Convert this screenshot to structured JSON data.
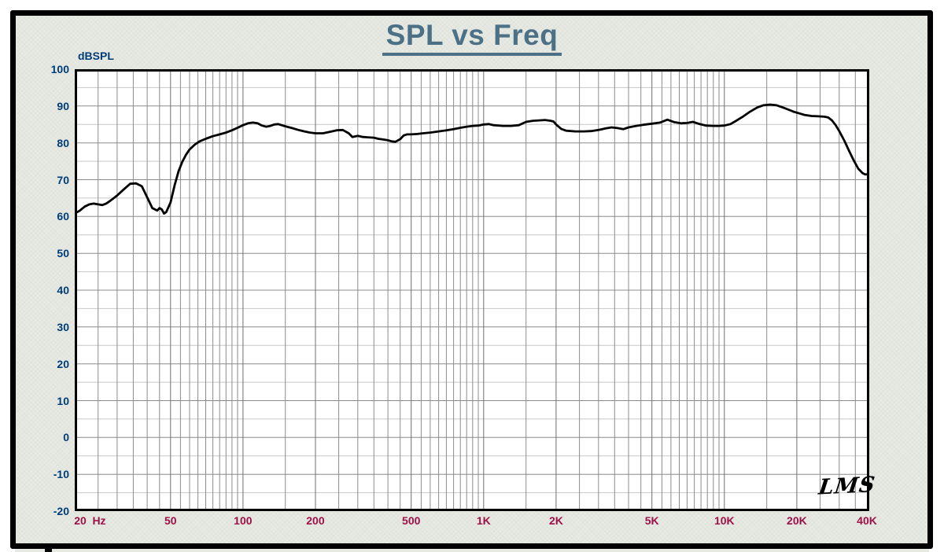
{
  "chart": {
    "title": "SPL vs Freq",
    "y_unit_label": "dBSPL",
    "x_unit_label": "Hz",
    "watermark": "LMS",
    "colors": {
      "title": "#4c7186",
      "y_labels": "#003d78",
      "x_labels": "#9e1148",
      "curve": "#000000",
      "frame": "#000000",
      "panel_bg": "#e7e9e3",
      "plot_bg": "#ffffff",
      "grid_major": "#8c8c8c",
      "grid_major_labeled": "#6e6e6e",
      "grid_minor": "#c8c8c8"
    }
  },
  "chart_data": {
    "type": "line",
    "title": "SPL vs Freq",
    "xlabel": "Hz",
    "ylabel": "dBSPL",
    "xscale": "log",
    "xlim": [
      20,
      40000
    ],
    "ylim": [
      -20,
      100
    ],
    "grid": "log minor gridlines at 0.5-steps per decade; horizontal lines every 5 dB (major every 10 dB)",
    "legend_position": "none",
    "x_ticks": [
      {
        "value": 20,
        "label": "20"
      },
      {
        "value": 50,
        "label": "50"
      },
      {
        "value": 100,
        "label": "100"
      },
      {
        "value": 200,
        "label": "200"
      },
      {
        "value": 500,
        "label": "500"
      },
      {
        "value": 1000,
        "label": "1K"
      },
      {
        "value": 2000,
        "label": "2K"
      },
      {
        "value": 5000,
        "label": "5K"
      },
      {
        "value": 10000,
        "label": "10K"
      },
      {
        "value": 20000,
        "label": "20K"
      },
      {
        "value": 40000,
        "label": "40K"
      }
    ],
    "y_ticks": [
      100,
      90,
      80,
      70,
      60,
      50,
      40,
      30,
      20,
      10,
      0,
      -10,
      -20
    ],
    "series": [
      {
        "name": "SPL",
        "points": [
          [
            20,
            60.8
          ],
          [
            21,
            61.6
          ],
          [
            22,
            62.7
          ],
          [
            23,
            63.3
          ],
          [
            24,
            63.5
          ],
          [
            25,
            63.3
          ],
          [
            26,
            63.1
          ],
          [
            27,
            63.5
          ],
          [
            28,
            64.2
          ],
          [
            30,
            65.7
          ],
          [
            32,
            67.4
          ],
          [
            34,
            68.9
          ],
          [
            36,
            69.0
          ],
          [
            38,
            68.2
          ],
          [
            40,
            65.2
          ],
          [
            42,
            62.3
          ],
          [
            44,
            61.6
          ],
          [
            45,
            62.3
          ],
          [
            46,
            61.9
          ],
          [
            47,
            60.8
          ],
          [
            48,
            61.2
          ],
          [
            50,
            63.8
          ],
          [
            52,
            68.5
          ],
          [
            54,
            72.3
          ],
          [
            56,
            74.9
          ],
          [
            58,
            76.8
          ],
          [
            60,
            78.2
          ],
          [
            63,
            79.5
          ],
          [
            66,
            80.4
          ],
          [
            70,
            81.1
          ],
          [
            75,
            81.8
          ],
          [
            80,
            82.3
          ],
          [
            85,
            82.8
          ],
          [
            90,
            83.4
          ],
          [
            95,
            84.1
          ],
          [
            100,
            84.8
          ],
          [
            105,
            85.3
          ],
          [
            110,
            85.5
          ],
          [
            115,
            85.3
          ],
          [
            120,
            84.7
          ],
          [
            125,
            84.4
          ],
          [
            130,
            84.6
          ],
          [
            135,
            85.0
          ],
          [
            140,
            85.1
          ],
          [
            150,
            84.5
          ],
          [
            160,
            84.0
          ],
          [
            170,
            83.5
          ],
          [
            180,
            83.1
          ],
          [
            190,
            82.8
          ],
          [
            200,
            82.6
          ],
          [
            215,
            82.6
          ],
          [
            230,
            83.0
          ],
          [
            245,
            83.4
          ],
          [
            260,
            83.5
          ],
          [
            275,
            82.6
          ],
          [
            285,
            81.6
          ],
          [
            300,
            81.9
          ],
          [
            315,
            81.6
          ],
          [
            330,
            81.5
          ],
          [
            350,
            81.4
          ],
          [
            365,
            81.1
          ],
          [
            385,
            80.9
          ],
          [
            400,
            80.7
          ],
          [
            415,
            80.4
          ],
          [
            430,
            80.3
          ],
          [
            450,
            81.0
          ],
          [
            465,
            82.0
          ],
          [
            480,
            82.3
          ],
          [
            500,
            82.3
          ],
          [
            530,
            82.4
          ],
          [
            560,
            82.6
          ],
          [
            600,
            82.8
          ],
          [
            650,
            83.1
          ],
          [
            700,
            83.4
          ],
          [
            750,
            83.7
          ],
          [
            800,
            84.1
          ],
          [
            850,
            84.4
          ],
          [
            900,
            84.6
          ],
          [
            950,
            84.7
          ],
          [
            1000,
            85.0
          ],
          [
            1050,
            85.1
          ],
          [
            1100,
            84.8
          ],
          [
            1200,
            84.6
          ],
          [
            1300,
            84.6
          ],
          [
            1400,
            84.8
          ],
          [
            1500,
            85.7
          ],
          [
            1600,
            86.0
          ],
          [
            1700,
            86.1
          ],
          [
            1800,
            86.2
          ],
          [
            1900,
            86.0
          ],
          [
            1950,
            85.8
          ],
          [
            2000,
            85.0
          ],
          [
            2100,
            83.8
          ],
          [
            2200,
            83.3
          ],
          [
            2400,
            83.1
          ],
          [
            2600,
            83.1
          ],
          [
            2800,
            83.2
          ],
          [
            3000,
            83.5
          ],
          [
            3200,
            83.9
          ],
          [
            3400,
            84.2
          ],
          [
            3600,
            84.0
          ],
          [
            3800,
            83.7
          ],
          [
            4000,
            84.2
          ],
          [
            4300,
            84.6
          ],
          [
            4600,
            84.9
          ],
          [
            5000,
            85.2
          ],
          [
            5400,
            85.5
          ],
          [
            5800,
            86.3
          ],
          [
            6200,
            85.6
          ],
          [
            6600,
            85.3
          ],
          [
            7000,
            85.4
          ],
          [
            7400,
            85.7
          ],
          [
            7900,
            85.1
          ],
          [
            8400,
            84.7
          ],
          [
            9000,
            84.6
          ],
          [
            9500,
            84.6
          ],
          [
            10000,
            84.7
          ],
          [
            10600,
            85.1
          ],
          [
            11200,
            86.0
          ],
          [
            12000,
            87.2
          ],
          [
            12800,
            88.5
          ],
          [
            13700,
            89.6
          ],
          [
            14500,
            90.2
          ],
          [
            15500,
            90.4
          ],
          [
            16500,
            90.2
          ],
          [
            17500,
            89.6
          ],
          [
            18500,
            89.0
          ],
          [
            19500,
            88.4
          ],
          [
            20500,
            88.0
          ],
          [
            21500,
            87.6
          ],
          [
            23000,
            87.3
          ],
          [
            24500,
            87.2
          ],
          [
            26000,
            87.1
          ],
          [
            27000,
            86.9
          ],
          [
            28000,
            86.1
          ],
          [
            29000,
            84.8
          ],
          [
            30000,
            83.2
          ],
          [
            31500,
            80.6
          ],
          [
            33000,
            77.8
          ],
          [
            34500,
            75.2
          ],
          [
            36000,
            73.0
          ],
          [
            37500,
            71.8
          ],
          [
            38500,
            71.4
          ],
          [
            39500,
            71.5
          ],
          [
            40000,
            71.7
          ]
        ]
      }
    ]
  }
}
